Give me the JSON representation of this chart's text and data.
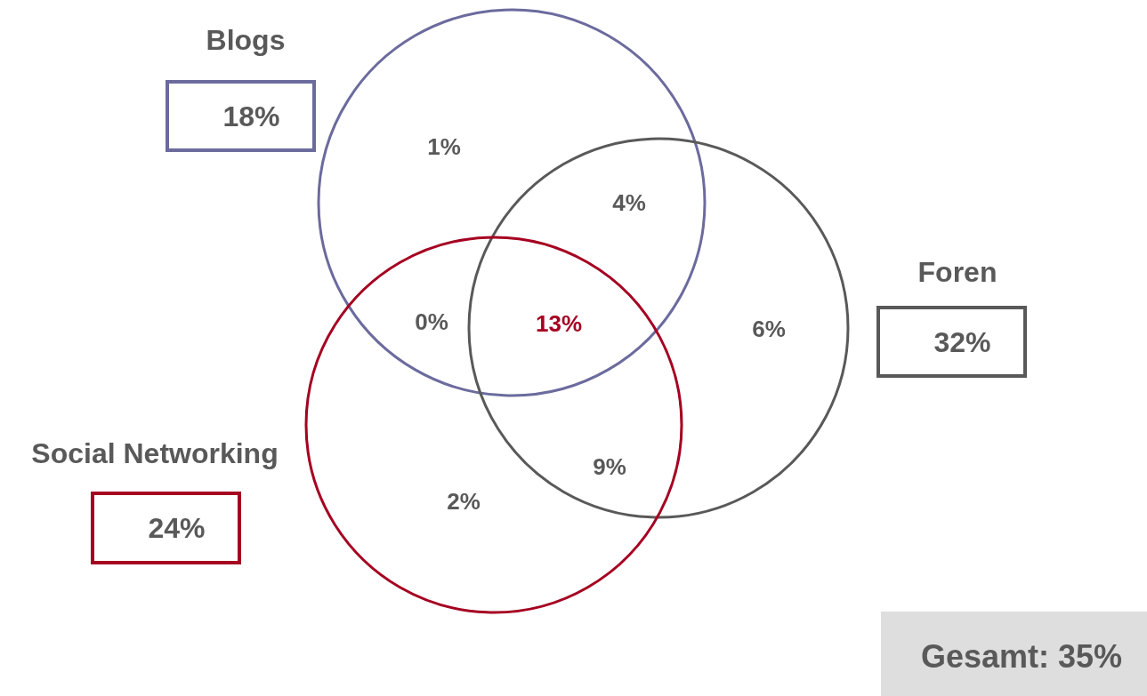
{
  "chart_data": {
    "type": "other",
    "categories": [
      "Blogs",
      "Foren",
      "Social Networking"
    ],
    "values": [
      18,
      32,
      24
    ],
    "value_labels": [
      "18%",
      "32%",
      "24%"
    ],
    "colors": [
      "#6b6b9e",
      "#595959",
      "#a50021"
    ],
    "annotations": [
      "1%",
      "4%",
      "6%",
      "0%",
      "13%",
      "9%",
      "2%",
      "Gesamt: 35%"
    ]
  }
}
